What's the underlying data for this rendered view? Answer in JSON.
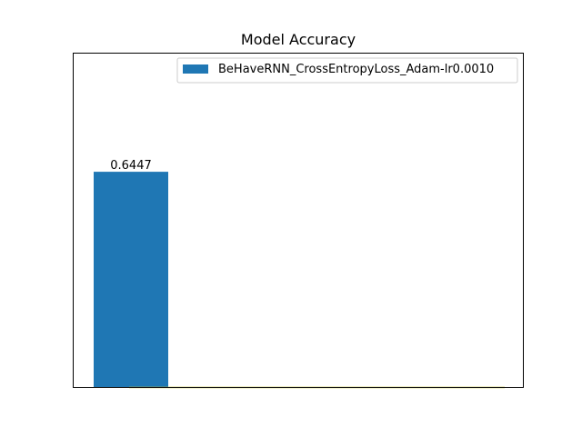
{
  "chart_data": {
    "type": "bar",
    "title": "Model Accuracy",
    "categories": [
      "BeHaveRNN_CrossEntropyLoss_Adam-lr0.0010"
    ],
    "series": [
      {
        "name": "BeHaveRNN_CrossEntropyLoss_Adam-lr0.0010",
        "values": [
          0.6447
        ],
        "color": "#1f77b4"
      }
    ],
    "data_labels": [
      "0.6447"
    ],
    "ylim": [
      0,
      1.0
    ],
    "baseline_line_color": "#bcbd22",
    "grid": false,
    "axis_ticks_visible": false,
    "legend_position": "upper-right"
  }
}
